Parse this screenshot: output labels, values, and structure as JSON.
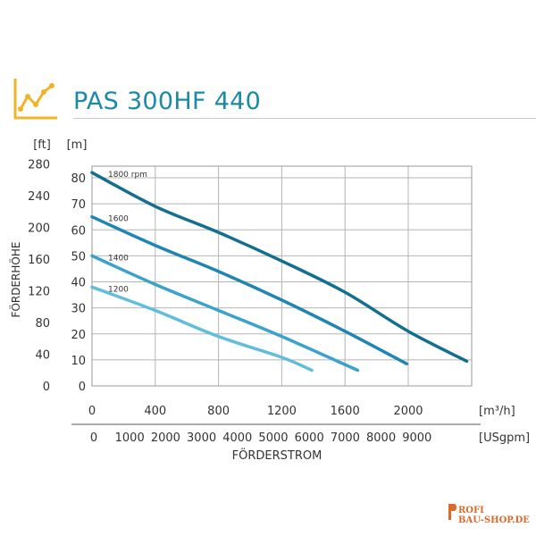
{
  "header": {
    "title": "PAS 300HF 440",
    "icon": "chart-line-icon",
    "accent_color": "#1a8aa6",
    "icon_color": "#f0b429"
  },
  "chart_data": {
    "type": "line",
    "title": "",
    "ylabel": "FÖRDERHÖHE",
    "xlabel": "FÖRDERSTROM",
    "y_unit_m": "[m]",
    "y_unit_ft": "[ft]",
    "x_unit_m3h": "[m³/h]",
    "x_unit_usgpm": "[USgpm]",
    "xlim": [
      0,
      2400
    ],
    "ylim_m": [
      0,
      85
    ],
    "grid": true,
    "x_ticks_m3h": [
      "0",
      "400",
      "800",
      "1200",
      "1600",
      "2000"
    ],
    "x_ticks_usgpm": [
      "0",
      "1000",
      "2000",
      "3000",
      "4000",
      "5000",
      "6000",
      "7000",
      "8000",
      "9000"
    ],
    "y_ticks_m": [
      "0",
      "10",
      "20",
      "30",
      "40",
      "50",
      "60",
      "70",
      "80"
    ],
    "y_ticks_ft": [
      "0",
      "40",
      "80",
      "120",
      "160",
      "200",
      "240",
      "280"
    ],
    "series": [
      {
        "name": "1800 rpm",
        "color": "#136f8f",
        "x": [
          0,
          400,
          800,
          1200,
          1600,
          2000,
          2370
        ],
        "y": [
          82,
          69,
          59,
          48,
          36,
          21,
          9.5
        ]
      },
      {
        "name": "1600",
        "color": "#1f86b3",
        "x": [
          0,
          400,
          800,
          1200,
          1600,
          1990
        ],
        "y": [
          65,
          54,
          44,
          33,
          21,
          8.5
        ]
      },
      {
        "name": "1400",
        "color": "#3aa3cc",
        "x": [
          0,
          400,
          800,
          1200,
          1680
        ],
        "y": [
          50,
          39,
          29,
          19,
          6
        ]
      },
      {
        "name": "1200",
        "color": "#62bddb",
        "x": [
          0,
          400,
          800,
          1200,
          1390
        ],
        "y": [
          38,
          29,
          19,
          11,
          6
        ]
      }
    ]
  },
  "watermark": {
    "line1": "ROFI",
    "line2": "BAU-SHOP.DE"
  }
}
